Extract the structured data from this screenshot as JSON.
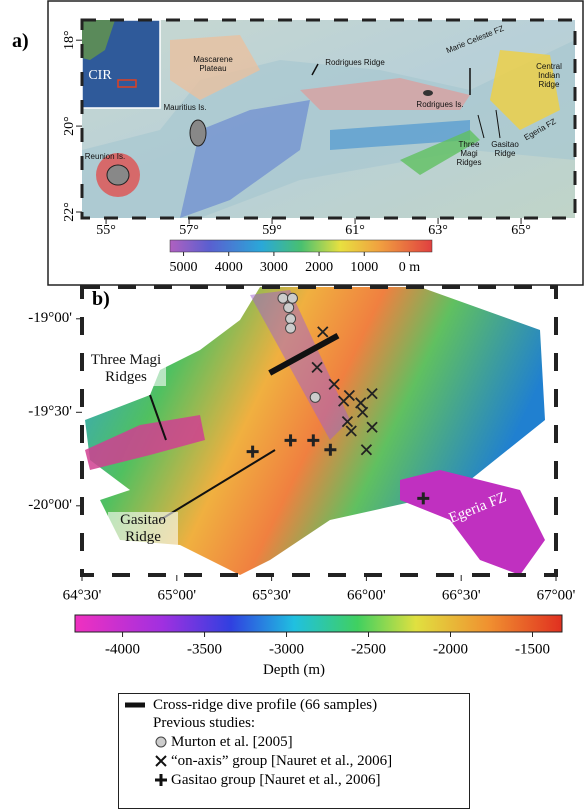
{
  "panel_a": {
    "label": "a)",
    "lon_range": [
      54.42,
      66.3
    ],
    "lat_range": [
      17.53,
      22.14
    ],
    "lon_ticks": [
      {
        "value": 55,
        "label": "55°"
      },
      {
        "value": 57,
        "label": "57°"
      },
      {
        "value": 59,
        "label": "59°"
      },
      {
        "value": 61,
        "label": "61°"
      },
      {
        "value": 63,
        "label": "63°"
      },
      {
        "value": 65,
        "label": "65°"
      }
    ],
    "lat_ticks": [
      {
        "value": 18,
        "label": "18°"
      },
      {
        "value": 20,
        "label": "20°"
      },
      {
        "value": 22,
        "label": "22°"
      }
    ],
    "inset_label": "CIR",
    "annotations": [
      "Mascarene Plateau",
      "Mauritius Is.",
      "Reunion Is.",
      "Rodrigues Ridge",
      "Marie Celeste FZ",
      "Rodrigues Is.",
      "Central Indian Ridge",
      "Egeria FZ",
      "Three Magi Ridges",
      "Gasitao Ridge"
    ],
    "colorbar": {
      "range": [
        5300,
        -500
      ],
      "ticks": [
        5000,
        4000,
        3000,
        2000,
        1000,
        {
          "value": 0,
          "label": "0 m"
        }
      ]
    }
  },
  "panel_b": {
    "label": "b)",
    "lon_range": [
      64.5,
      67.0
    ],
    "lat_range": [
      -20.37,
      -18.83
    ],
    "lon_ticks": [
      {
        "value": 64.5,
        "label": "64°30'"
      },
      {
        "value": 65.0,
        "label": "65°00'"
      },
      {
        "value": 65.5,
        "label": "65°30'"
      },
      {
        "value": 66.0,
        "label": "66°00'"
      },
      {
        "value": 66.5,
        "label": "66°30'"
      },
      {
        "value": 67.0,
        "label": "67°00'"
      }
    ],
    "lat_ticks": [
      {
        "value": -19.0,
        "label": "-19°00'"
      },
      {
        "value": -19.5,
        "label": "-19°30'"
      },
      {
        "value": -20.0,
        "label": "-20°00'"
      }
    ],
    "annotations": [
      "Three Magi Ridges",
      "Gasitao Ridge",
      "Egeria FZ"
    ],
    "dive_profile": {
      "lon": [
        65.49,
        65.85
      ],
      "lat": [
        -19.29,
        -19.09
      ]
    },
    "murton": {
      "lon": [
        65.56,
        65.61,
        65.59,
        65.6,
        65.6,
        65.73
      ],
      "lat": [
        -18.89,
        -18.89,
        -18.94,
        -19.0,
        -19.05,
        -19.42
      ]
    },
    "on_axis": {
      "lon": [
        65.77,
        65.74,
        65.83,
        65.88,
        65.91,
        65.9,
        65.97,
        66.03,
        65.98,
        66.03,
        65.92,
        66.0
      ],
      "lat": [
        -19.07,
        -19.26,
        -19.35,
        -19.44,
        -19.41,
        -19.55,
        -19.45,
        -19.4,
        -19.5,
        -19.58,
        -19.6,
        -19.7
      ]
    },
    "gasitao": {
      "lon": [
        65.4,
        65.6,
        65.72,
        65.81,
        66.3
      ],
      "lat": [
        -19.71,
        -19.65,
        -19.65,
        -19.7,
        -19.96
      ]
    },
    "colorbar": {
      "range": [
        -4290,
        -1320
      ],
      "ticks": [
        -4000,
        -3500,
        -3000,
        -2500,
        -2000,
        -1500
      ],
      "title": "Depth (m)"
    }
  },
  "legend": {
    "dive": "Cross-ridge dive profile (66 samples)",
    "previous": "Previous studies:",
    "murton": "Murton et al. [2005]",
    "on_axis": "“on-axis” group [Nauret et al., 2006]",
    "gasitao": "Gasitao group [Nauret et al., 2006]"
  }
}
